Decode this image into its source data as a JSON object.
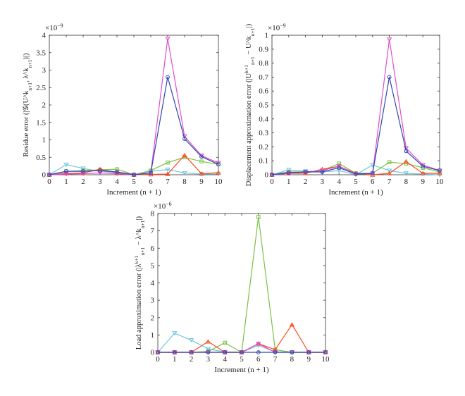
{
  "chart_data": [
    {
      "type": "line",
      "xlabel": "Increment (n + 1)",
      "ylabel": "Residue error (|𝒢(U^k_{n+1}, λ^k_{n+1})|)",
      "multiplier": "×10^{−9}",
      "x": [
        0,
        1,
        2,
        3,
        4,
        5,
        6,
        7,
        8,
        9,
        10
      ],
      "xlim": [
        0,
        10
      ],
      "ylim": [
        0,
        4
      ],
      "yticks": [
        0,
        0.5,
        1,
        1.5,
        2,
        2.5,
        3,
        3.5,
        4
      ],
      "ytick_labels": [
        "0",
        "0.5",
        "1",
        "1.5",
        "2",
        "2.5",
        "3",
        "3.5",
        "4"
      ],
      "xticks": [
        0,
        1,
        2,
        3,
        4,
        5,
        6,
        7,
        8,
        9,
        10
      ],
      "xtick_labels": [
        "0",
        "1",
        "2",
        "3",
        "4",
        "5",
        "6",
        "7",
        "8",
        "9",
        "10"
      ],
      "grid": false,
      "series": [
        {
          "color": "#6fc6de",
          "marker": "triangle-down",
          "values": [
            0,
            0.29,
            0.18,
            0.1,
            0.06,
            0,
            0.1,
            0.15,
            0.05,
            0.02,
            0.02
          ]
        },
        {
          "color": "#7ac143",
          "marker": "square",
          "values": [
            0,
            0.1,
            0.12,
            0.14,
            0.16,
            0,
            0.12,
            0.35,
            0.5,
            0.38,
            0.3
          ]
        },
        {
          "color": "#ff4a1c",
          "marker": "triangle-up",
          "values": [
            0,
            0.04,
            0.05,
            0.16,
            0.06,
            0,
            0.01,
            0.02,
            0.56,
            0.03,
            0.06
          ]
        },
        {
          "color": "#e04fc8",
          "marker": "triangle-down",
          "values": [
            0,
            0.02,
            0.03,
            0.05,
            0.03,
            0,
            0.05,
            3.9,
            1.1,
            0.55,
            0.34
          ]
        },
        {
          "color": "#2f46b4",
          "marker": "circle",
          "values": [
            0,
            0.1,
            0.1,
            0.12,
            0.08,
            0,
            0.05,
            2.8,
            1.03,
            0.52,
            0.3
          ]
        }
      ]
    },
    {
      "type": "line",
      "xlabel": "Increment (n + 1)",
      "ylabel": "Displacement approximation error (|U^{k+1}_{n+1} − U^k_{n+1}|)",
      "multiplier": "×10^{−9}",
      "x": [
        0,
        1,
        2,
        3,
        4,
        5,
        6,
        7,
        8,
        9,
        10
      ],
      "xlim": [
        0,
        10
      ],
      "ylim": [
        0,
        1
      ],
      "yticks": [
        0,
        0.1,
        0.2,
        0.3,
        0.4,
        0.5,
        0.6,
        0.7,
        0.8,
        0.9,
        1
      ],
      "ytick_labels": [
        "0",
        "0.1",
        "0.2",
        "0.3",
        "0.4",
        "0.5",
        "0.6",
        "0.7",
        "0.8",
        "0.9",
        "1"
      ],
      "xticks": [
        0,
        1,
        2,
        3,
        4,
        5,
        6,
        7,
        8,
        9,
        10
      ],
      "xtick_labels": [
        "0",
        "1",
        "2",
        "3",
        "4",
        "5",
        "6",
        "7",
        "8",
        "9",
        "10"
      ],
      "grid": false,
      "series": [
        {
          "color": "#6fc6de",
          "marker": "triangle-down",
          "values": [
            0,
            0.035,
            0.025,
            0.02,
            0.03,
            0,
            0.07,
            0.03,
            0.01,
            0.005,
            0
          ]
        },
        {
          "color": "#7ac143",
          "marker": "square",
          "values": [
            0,
            0.02,
            0.02,
            0.03,
            0.08,
            0.01,
            0.01,
            0.09,
            0.08,
            0.05,
            0.02
          ]
        },
        {
          "color": "#ff4a1c",
          "marker": "triangle-up",
          "values": [
            0,
            0.01,
            0.01,
            0.04,
            0.06,
            0.01,
            0,
            0.01,
            0.095,
            0.01,
            0.01
          ]
        },
        {
          "color": "#e04fc8",
          "marker": "triangle-down",
          "values": [
            0,
            0.01,
            0.02,
            0.03,
            0.06,
            0.005,
            0.01,
            0.97,
            0.19,
            0.07,
            0.03
          ]
        },
        {
          "color": "#2f46b4",
          "marker": "circle",
          "values": [
            0,
            0.015,
            0.02,
            0.02,
            0.05,
            0.005,
            0.01,
            0.7,
            0.17,
            0.06,
            0.03
          ]
        }
      ]
    },
    {
      "type": "line",
      "xlabel": "Increment (n + 1)",
      "ylabel": "Load approximation error (|λ^{k+1}_{n+1} − λ^k_{n+1}|)",
      "multiplier": "×10^{−6}",
      "x": [
        0,
        1,
        2,
        3,
        4,
        5,
        6,
        7,
        8,
        9,
        10
      ],
      "xlim": [
        0,
        10
      ],
      "ylim": [
        0,
        8
      ],
      "yticks": [
        0,
        1,
        2,
        3,
        4,
        5,
        6,
        7,
        8
      ],
      "ytick_labels": [
        "0",
        "1",
        "2",
        "3",
        "4",
        "5",
        "6",
        "7",
        "8"
      ],
      "xticks": [
        0,
        1,
        2,
        3,
        4,
        5,
        6,
        7,
        8,
        9,
        10
      ],
      "xtick_labels": [
        "0",
        "1",
        "2",
        "3",
        "4",
        "5",
        "6",
        "7",
        "8",
        "9",
        "10"
      ],
      "grid": false,
      "series": [
        {
          "color": "#6fc6de",
          "marker": "triangle-down",
          "values": [
            0,
            1.1,
            0.7,
            0.2,
            0.02,
            0,
            0.4,
            0.02,
            0,
            0,
            0
          ]
        },
        {
          "color": "#7ac143",
          "marker": "square",
          "values": [
            0,
            0,
            0,
            0.05,
            0.55,
            0,
            7.8,
            0.15,
            0,
            0,
            0.02
          ]
        },
        {
          "color": "#ff4a1c",
          "marker": "triangle-up",
          "values": [
            0,
            0,
            0,
            0.62,
            0,
            0,
            0.5,
            0.15,
            1.6,
            0,
            0
          ]
        },
        {
          "color": "#e04fc8",
          "marker": "triangle-down",
          "values": [
            0,
            0,
            0,
            0,
            0,
            0,
            0.5,
            0,
            0,
            0,
            0
          ]
        },
        {
          "color": "#2f46b4",
          "marker": "circle",
          "values": [
            0,
            0,
            0,
            0,
            0,
            0,
            0,
            0,
            0,
            0,
            0
          ]
        }
      ]
    }
  ]
}
